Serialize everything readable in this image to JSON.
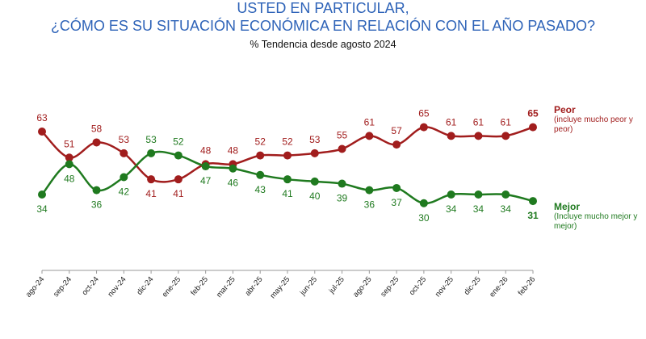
{
  "chart_data": {
    "type": "line",
    "title": "USTED EN PARTICULAR,",
    "title_line2": "¿CÓMO ES SU SITUACIÓN ECONÓMICA EN RELACIÓN CON EL AÑO PASADO?",
    "subtitle": "%  Tendencia desde agosto 2024",
    "categories": [
      "ago-24",
      "sep-24",
      "oct-24",
      "nov-24",
      "dic-24",
      "ene-25",
      "feb-25",
      "mar-25",
      "abr-25",
      "may-25",
      "jun-25",
      "jul-25",
      "ago-25",
      "sep-25",
      "oct-25",
      "nov-25",
      "dic-25",
      "ene-26",
      "feb-26"
    ],
    "series": [
      {
        "name": "Peor",
        "note": "(incluye mucho peor y peor)",
        "color": "#a11d1d",
        "values": [
          63,
          51,
          58,
          53,
          41,
          41,
          48,
          48,
          52,
          52,
          53,
          55,
          61,
          57,
          65,
          61,
          61,
          61,
          65
        ]
      },
      {
        "name": "Mejor",
        "note": "(Incluye mucho mejor y mejor)",
        "color": "#1f7a1f",
        "values": [
          34,
          48,
          36,
          42,
          53,
          52,
          47,
          46,
          43,
          41,
          40,
          39,
          36,
          37,
          30,
          34,
          34,
          34,
          31
        ]
      }
    ],
    "grid": false,
    "legend": "right",
    "title_color": "#2e63b8"
  }
}
